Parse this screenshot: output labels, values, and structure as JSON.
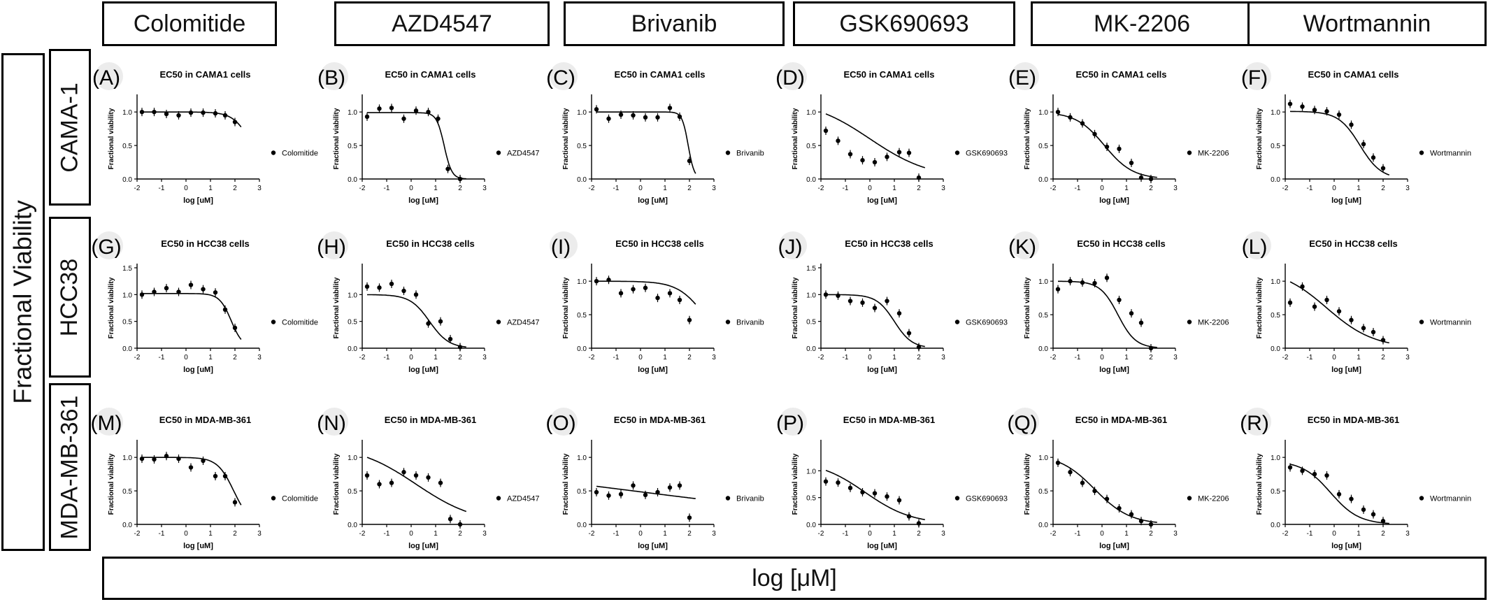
{
  "page": {
    "y_axis_title": "Fractional Viability",
    "x_axis_title": "log [μM]",
    "columns": [
      "Colomitide",
      "AZD4547",
      "Brivanib",
      "GSK690693",
      "MK-2206",
      "Wortmannin"
    ],
    "rows": [
      "CAMA-1",
      "HCC38",
      "MDA-MB-361"
    ]
  },
  "colors": {
    "line": "#000000",
    "background": "#ffffff"
  },
  "chart_data": [
    {
      "panel": "(A)",
      "type": "scatter",
      "title": "EC50 in CAMA1 cells",
      "xlabel": "log [uM]",
      "ylabel": "Fractional viability",
      "legend": "Colomitide",
      "xlim": [
        -2,
        3
      ],
      "ylim": [
        0,
        1.2
      ],
      "xticks": [
        -2,
        -1,
        0,
        1,
        2,
        3
      ],
      "yticks": [
        "0.0",
        "0.5",
        "1.0"
      ],
      "x": [
        -1.8,
        -1.3,
        -0.8,
        -0.3,
        0.2,
        0.7,
        1.2,
        1.6,
        2.0
      ],
      "y": [
        1.0,
        1.0,
        0.97,
        0.95,
        0.99,
        0.99,
        0.98,
        0.95,
        0.85
      ],
      "curve": {
        "top": 1.0,
        "bottom": 0.0,
        "ec50": 2.7,
        "hill": 1.2
      }
    },
    {
      "panel": "(B)",
      "type": "scatter",
      "title": "EC50 in CAMA1 cells",
      "xlabel": "log [uM]",
      "ylabel": "Fractional viability",
      "legend": "AZD4547",
      "xlim": [
        -2,
        3
      ],
      "ylim": [
        0,
        1.2
      ],
      "xticks": [
        -2,
        -1,
        0,
        1,
        2,
        3
      ],
      "yticks": [
        "0.0",
        "0.5",
        "1.0"
      ],
      "x": [
        -1.8,
        -1.3,
        -0.8,
        -0.3,
        0.2,
        0.7,
        1.1,
        1.5,
        2.0
      ],
      "y": [
        0.93,
        1.05,
        1.06,
        0.9,
        1.02,
        1.0,
        0.9,
        0.15,
        0.0
      ],
      "curve": {
        "top": 0.99,
        "bottom": 0.0,
        "ec50": 1.35,
        "hill": 2.8
      }
    },
    {
      "panel": "(C)",
      "type": "scatter",
      "title": "EC50 in CAMA1 cells",
      "xlabel": "log [uM]",
      "ylabel": "Fractional viability",
      "legend": "Brivanib",
      "xlim": [
        -2,
        3
      ],
      "ylim": [
        0,
        1.2
      ],
      "xticks": [
        -2,
        -1,
        0,
        1,
        2,
        3
      ],
      "yticks": [
        "0.0",
        "0.5",
        "1.0"
      ],
      "x": [
        -1.8,
        -1.3,
        -0.8,
        -0.3,
        0.2,
        0.7,
        1.2,
        1.6,
        2.0
      ],
      "y": [
        1.04,
        0.9,
        0.96,
        0.95,
        0.92,
        0.92,
        1.06,
        0.93,
        0.27
      ],
      "curve": {
        "top": 1.0,
        "bottom": 0.0,
        "ec50": 1.95,
        "hill": 3.5
      }
    },
    {
      "panel": "(D)",
      "type": "scatter",
      "title": "EC50 in CAMA1 cells",
      "xlabel": "log [uM]",
      "ylabel": "Fractional viability",
      "legend": "GSK690693",
      "xlim": [
        -2,
        3
      ],
      "ylim": [
        0,
        1.2
      ],
      "xticks": [
        -2,
        -1,
        0,
        1,
        2,
        3
      ],
      "yticks": [
        "0.0",
        "0.5",
        "1.0"
      ],
      "x": [
        -1.8,
        -1.3,
        -0.8,
        -0.3,
        0.2,
        0.7,
        1.2,
        1.6,
        2.0
      ],
      "y": [
        0.72,
        0.57,
        0.37,
        0.28,
        0.25,
        0.33,
        0.4,
        0.39,
        0.02
      ],
      "curve": {
        "top": 1.2,
        "bottom": 0.0,
        "ec50": 0.0,
        "hill": 0.35
      }
    },
    {
      "panel": "(E)",
      "type": "scatter",
      "title": "EC50 in CAMA1 cells",
      "xlabel": "log [uM]",
      "ylabel": "Fractional viability",
      "legend": "MK-2206",
      "xlim": [
        -2,
        3
      ],
      "ylim": [
        0,
        1.2
      ],
      "xticks": [
        -2,
        -1,
        0,
        1,
        2,
        3
      ],
      "yticks": [
        "0.0",
        "0.5",
        "1.0"
      ],
      "x": [
        -1.8,
        -1.3,
        -0.8,
        -0.3,
        0.2,
        0.7,
        1.2,
        1.6,
        2.0
      ],
      "y": [
        1.0,
        0.92,
        0.83,
        0.67,
        0.48,
        0.45,
        0.24,
        0.02,
        0.0
      ],
      "curve": {
        "top": 1.0,
        "bottom": 0.0,
        "ec50": 0.1,
        "hill": 0.75
      }
    },
    {
      "panel": "(F)",
      "type": "scatter",
      "title": "EC50 in CAMA1 cells",
      "xlabel": "log [uM]",
      "ylabel": "Fractional viability",
      "legend": "Wortmannin",
      "xlim": [
        -2,
        3
      ],
      "ylim": [
        0,
        1.2
      ],
      "xticks": [
        -2,
        -1,
        0,
        1,
        2,
        3
      ],
      "yticks": [
        "0.0",
        "0.5",
        "1.0"
      ],
      "x": [
        -1.8,
        -1.3,
        -0.8,
        -0.3,
        0.2,
        0.7,
        1.2,
        1.6,
        2.0
      ],
      "y": [
        1.12,
        1.08,
        1.03,
        1.01,
        0.96,
        0.81,
        0.52,
        0.32,
        0.16
      ],
      "curve": {
        "top": 1.01,
        "bottom": 0.0,
        "ec50": 1.05,
        "hill": 1.0
      }
    },
    {
      "panel": "(G)",
      "type": "scatter",
      "title": "EC50 in HCC38 cells",
      "xlabel": "log [uM]",
      "ylabel": "Fractional viability",
      "legend": "Colomitide",
      "xlim": [
        -2,
        3
      ],
      "ylim": [
        0,
        1.5
      ],
      "xticks": [
        -2,
        -1,
        0,
        1,
        2,
        3
      ],
      "yticks": [
        "0.0",
        "0.5",
        "1.0",
        "1.5"
      ],
      "x": [
        -1.8,
        -1.3,
        -0.8,
        -0.3,
        0.2,
        0.7,
        1.2,
        1.6,
        2.0
      ],
      "y": [
        1.0,
        1.05,
        1.12,
        1.05,
        1.18,
        1.1,
        1.04,
        0.72,
        0.38
      ],
      "curve": {
        "top": 1.02,
        "bottom": 0.0,
        "ec50": 1.85,
        "hill": 1.8
      }
    },
    {
      "panel": "(H)",
      "type": "scatter",
      "title": "EC50 in HCC38 cells",
      "xlabel": "log [uM]",
      "ylabel": "Fractional viability",
      "legend": "AZD4547",
      "xlim": [
        -2,
        3
      ],
      "ylim": [
        0,
        1.5
      ],
      "xticks": [
        -2,
        -1,
        0,
        1,
        2,
        3
      ],
      "yticks": [
        "0.0",
        "0.5",
        "1.0"
      ],
      "x": [
        -1.8,
        -1.3,
        -0.8,
        -0.3,
        0.2,
        0.7,
        1.2,
        1.6,
        2.0
      ],
      "y": [
        1.15,
        1.13,
        1.2,
        1.07,
        1.0,
        0.46,
        0.5,
        0.17,
        0.02
      ],
      "curve": {
        "top": 1.0,
        "bottom": 0.0,
        "ec50": 0.75,
        "hill": 1.1
      }
    },
    {
      "panel": "(I)",
      "type": "scatter",
      "title": "EC50 in HCC38 cells",
      "xlabel": "log [uM]",
      "ylabel": "Fractional viability",
      "legend": "Brivanib",
      "xlim": [
        -2,
        3
      ],
      "ylim": [
        0,
        1.2
      ],
      "xticks": [
        -2,
        -1,
        0,
        1,
        2,
        3
      ],
      "yticks": [
        "0.0",
        "0.5",
        "1.0"
      ],
      "x": [
        -1.8,
        -1.3,
        -0.8,
        -0.3,
        0.2,
        0.7,
        1.2,
        1.6,
        2.0
      ],
      "y": [
        1.0,
        1.02,
        0.82,
        0.88,
        0.9,
        0.75,
        0.82,
        0.72,
        0.42
      ],
      "curve": {
        "top": 1.0,
        "bottom": 0.0,
        "ec50": 2.6,
        "hill": 0.8
      }
    },
    {
      "panel": "(J)",
      "type": "scatter",
      "title": "EC50 in HCC38 cells",
      "xlabel": "log [uM]",
      "ylabel": "Fractional viability",
      "legend": "GSK690693",
      "xlim": [
        -2,
        3
      ],
      "ylim": [
        0,
        1.5
      ],
      "xticks": [
        -2,
        -1,
        0,
        1,
        2,
        3
      ],
      "yticks": [
        "0.0",
        "0.5",
        "1.0",
        "1.5"
      ],
      "x": [
        -1.8,
        -1.3,
        -0.8,
        -0.3,
        0.2,
        0.7,
        1.2,
        1.6,
        2.0
      ],
      "y": [
        1.0,
        0.98,
        0.88,
        0.85,
        0.75,
        0.88,
        0.65,
        0.28,
        0.02
      ],
      "curve": {
        "top": 1.0,
        "bottom": 0.0,
        "ec50": 1.0,
        "hill": 1.2
      }
    },
    {
      "panel": "(K)",
      "type": "scatter",
      "title": "EC50 in HCC38 cells",
      "xlabel": "log [uM]",
      "ylabel": "Fractional viability",
      "legend": "MK-2206",
      "xlim": [
        -2,
        3
      ],
      "ylim": [
        0,
        1.2
      ],
      "xticks": [
        -2,
        -1,
        0,
        1,
        2,
        3
      ],
      "yticks": [
        "0.0",
        "0.5",
        "1.0"
      ],
      "x": [
        -1.8,
        -1.3,
        -0.8,
        -0.3,
        0.2,
        0.7,
        1.2,
        1.6,
        2.0
      ],
      "y": [
        0.88,
        1.0,
        0.98,
        0.97,
        1.05,
        0.72,
        0.52,
        0.38,
        0.0
      ],
      "curve": {
        "top": 1.0,
        "bottom": 0.0,
        "ec50": 0.65,
        "hill": 1.2
      }
    },
    {
      "panel": "(L)",
      "type": "scatter",
      "title": "EC50 in HCC38 cells",
      "xlabel": "log [uM]",
      "ylabel": "Fractional viability",
      "legend": "Wortmannin",
      "xlim": [
        -2,
        3
      ],
      "ylim": [
        0,
        1.2
      ],
      "xticks": [
        -2,
        -1,
        0,
        1,
        2,
        3
      ],
      "yticks": [
        "0.0",
        "0.5",
        "1.0"
      ],
      "x": [
        -1.8,
        -1.3,
        -0.8,
        -0.3,
        0.2,
        0.7,
        1.2,
        1.6,
        2.0
      ],
      "y": [
        0.68,
        0.92,
        0.62,
        0.72,
        0.55,
        0.42,
        0.3,
        0.24,
        0.12
      ],
      "curve": {
        "top": 1.2,
        "bottom": 0.0,
        "ec50": -0.3,
        "hill": 0.45
      }
    },
    {
      "panel": "(M)",
      "type": "scatter",
      "title": "EC50 in MDA-MB-361",
      "xlabel": "log [uM]",
      "ylabel": "Fractional viability",
      "legend": "Colomitide",
      "xlim": [
        -2,
        3
      ],
      "ylim": [
        0,
        1.2
      ],
      "xticks": [
        -2,
        -1,
        0,
        1,
        2,
        3
      ],
      "yticks": [
        "0.0",
        "0.5",
        "1.0"
      ],
      "x": [
        -1.8,
        -1.3,
        -0.8,
        -0.3,
        0.2,
        0.7,
        1.2,
        1.6,
        2.0
      ],
      "y": [
        0.98,
        0.97,
        1.02,
        0.98,
        0.85,
        0.95,
        0.72,
        0.72,
        0.33
      ],
      "curve": {
        "top": 1.0,
        "bottom": 0.0,
        "ec50": 1.95,
        "hill": 1.3
      }
    },
    {
      "panel": "(N)",
      "type": "scatter",
      "title": "EC50 in MDA-MB-361",
      "xlabel": "log [uM]",
      "ylabel": "Fractional viability",
      "legend": "AZD4547",
      "xlim": [
        -2,
        3
      ],
      "ylim": [
        0,
        1.2
      ],
      "xticks": [
        -2,
        -1,
        0,
        1,
        2,
        3
      ],
      "yticks": [
        "0.0",
        "0.5",
        "1.0"
      ],
      "x": [
        -1.8,
        -1.3,
        -0.8,
        -0.3,
        0.2,
        0.7,
        1.2,
        1.6,
        2.0
      ],
      "y": [
        0.73,
        0.6,
        0.62,
        0.78,
        0.73,
        0.7,
        0.62,
        0.08,
        0.0
      ],
      "curve": {
        "top": 1.2,
        "bottom": 0.0,
        "ec50": 0.2,
        "hill": 0.35
      }
    },
    {
      "panel": "(O)",
      "type": "scatter",
      "title": "EC50 in MDA-MB-361",
      "xlabel": "log [uM]",
      "ylabel": "Fractional viability",
      "legend": "Brivanib",
      "xlim": [
        -2,
        3
      ],
      "ylim": [
        0,
        1.2
      ],
      "xticks": [
        -2,
        -1,
        0,
        1,
        2,
        3
      ],
      "yticks": [
        "0.0",
        "0.5",
        "1.0"
      ],
      "x": [
        -1.8,
        -1.3,
        -0.8,
        -0.3,
        0.2,
        0.7,
        1.2,
        1.6,
        2.0
      ],
      "y": [
        0.48,
        0.43,
        0.45,
        0.58,
        0.44,
        0.48,
        0.55,
        0.58,
        0.1
      ],
      "curve": {
        "top": 1.0,
        "bottom": 0.0,
        "ec50": -0.3,
        "hill": 0.08
      }
    },
    {
      "panel": "(P)",
      "type": "scatter",
      "title": "EC50 in MDA-MB-361",
      "xlabel": "log [uM]",
      "ylabel": "Fractional viability",
      "legend": "GSK690693",
      "xlim": [
        -2,
        3
      ],
      "ylim": [
        0,
        1.5
      ],
      "xticks": [
        -2,
        -1,
        0,
        1,
        2,
        3
      ],
      "yticks": [
        "0.0",
        "0.5",
        "1.0"
      ],
      "x": [
        -1.8,
        -1.3,
        -0.8,
        -0.3,
        0.2,
        0.7,
        1.2,
        1.6,
        2.0
      ],
      "y": [
        0.8,
        0.78,
        0.68,
        0.6,
        0.58,
        0.52,
        0.45,
        0.15,
        0.02
      ],
      "curve": {
        "top": 1.2,
        "bottom": 0.0,
        "ec50": -0.2,
        "hill": 0.45
      }
    },
    {
      "panel": "(Q)",
      "type": "scatter",
      "title": "EC50 in MDA-MB-361",
      "xlabel": "log [uM]",
      "ylabel": "Fractional viability",
      "legend": "MK-2206",
      "xlim": [
        -2,
        3
      ],
      "ylim": [
        0,
        1.2
      ],
      "xticks": [
        -2,
        -1,
        0,
        1,
        2,
        3
      ],
      "yticks": [
        "0.0",
        "0.5",
        "1.0"
      ],
      "x": [
        -1.8,
        -1.3,
        -0.8,
        -0.3,
        0.2,
        0.7,
        1.2,
        1.6,
        2.0
      ],
      "y": [
        0.92,
        0.78,
        0.62,
        0.5,
        0.38,
        0.24,
        0.15,
        0.05,
        0.0
      ],
      "curve": {
        "top": 1.05,
        "bottom": 0.0,
        "ec50": -0.3,
        "hill": 0.6
      }
    },
    {
      "panel": "(R)",
      "type": "scatter",
      "title": "EC50 in MDA-MB-361",
      "xlabel": "log [uM]",
      "ylabel": "Fractional viability",
      "legend": "Wortmannin",
      "xlim": [
        -2,
        3
      ],
      "ylim": [
        0,
        1.2
      ],
      "xticks": [
        -2,
        -1,
        0,
        1,
        2,
        3
      ],
      "yticks": [
        "0.0",
        "0.5",
        "1.0"
      ],
      "x": [
        -1.8,
        -1.3,
        -0.8,
        -0.3,
        0.2,
        0.7,
        1.2,
        1.6,
        2.0
      ],
      "y": [
        0.85,
        0.8,
        0.75,
        0.73,
        0.45,
        0.38,
        0.22,
        0.15,
        0.05
      ],
      "curve": {
        "top": 0.95,
        "bottom": 0.0,
        "ec50": -0.15,
        "hill": 0.75
      }
    }
  ]
}
